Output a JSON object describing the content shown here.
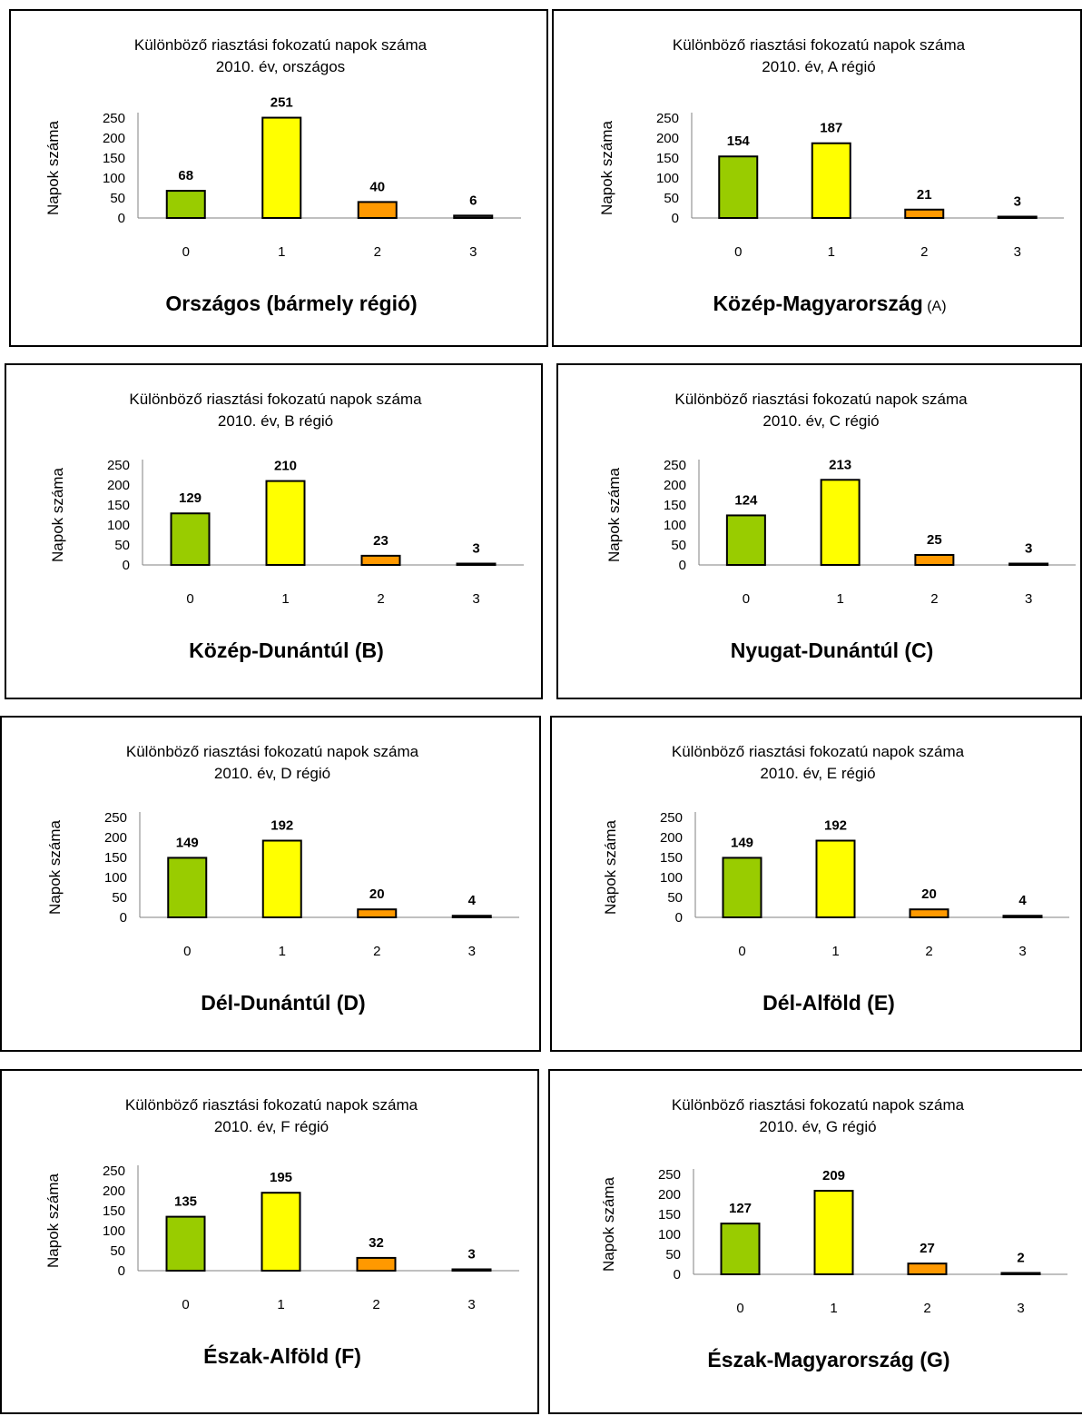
{
  "chart_data": [
    {
      "type": "bar",
      "title": "Különböző riasztási fokozatú napok száma",
      "subtitle": "2010. év, országos",
      "ylabel": "Napok száma",
      "caption": "Országos (bármely régió)",
      "caption_suffix": "",
      "categories": [
        "0",
        "1",
        "2",
        "3"
      ],
      "values": [
        68,
        251,
        40,
        6
      ],
      "colors": [
        "#99cc00",
        "#ffff00",
        "#ff9900",
        "#333333"
      ],
      "yticks": [
        0,
        50,
        100,
        150,
        200,
        250
      ],
      "ylim": [
        0,
        250
      ]
    },
    {
      "type": "bar",
      "title": "Különböző riasztási fokozatú napok száma",
      "subtitle": "2010. év, A régió",
      "ylabel": "Napok száma",
      "caption": "Közép-Magyarország",
      "caption_suffix": "(A)",
      "categories": [
        "0",
        "1",
        "2",
        "3"
      ],
      "values": [
        154,
        187,
        21,
        3
      ],
      "colors": [
        "#99cc00",
        "#ffff00",
        "#ff9900",
        "#333333"
      ],
      "yticks": [
        0,
        50,
        100,
        150,
        200,
        250
      ],
      "ylim": [
        0,
        250
      ]
    },
    {
      "type": "bar",
      "title": "Különböző riasztási fokozatú napok száma",
      "subtitle": "2010. év, B régió",
      "ylabel": "Napok száma",
      "caption": "Közép-Dunántúl (B)",
      "caption_suffix": "",
      "categories": [
        "0",
        "1",
        "2",
        "3"
      ],
      "values": [
        129,
        210,
        23,
        3
      ],
      "colors": [
        "#99cc00",
        "#ffff00",
        "#ff9900",
        "#333333"
      ],
      "yticks": [
        0,
        50,
        100,
        150,
        200,
        250
      ],
      "ylim": [
        0,
        250
      ]
    },
    {
      "type": "bar",
      "title": "Különböző riasztási fokozatú napok száma",
      "subtitle": "2010. év, C régió",
      "ylabel": "Napok száma",
      "caption": "Nyugat-Dunántúl (C)",
      "caption_suffix": "",
      "categories": [
        "0",
        "1",
        "2",
        "3"
      ],
      "values": [
        124,
        213,
        25,
        3
      ],
      "colors": [
        "#99cc00",
        "#ffff00",
        "#ff9900",
        "#333333"
      ],
      "yticks": [
        0,
        50,
        100,
        150,
        200,
        250
      ],
      "ylim": [
        0,
        250
      ]
    },
    {
      "type": "bar",
      "title": "Különböző riasztási fokozatú napok száma",
      "subtitle": "2010. év, D régió",
      "ylabel": "Napok száma",
      "caption": "Dél-Dunántúl (D)",
      "caption_suffix": "",
      "categories": [
        "0",
        "1",
        "2",
        "3"
      ],
      "values": [
        149,
        192,
        20,
        4
      ],
      "colors": [
        "#99cc00",
        "#ffff00",
        "#ff9900",
        "#333333"
      ],
      "yticks": [
        0,
        50,
        100,
        150,
        200,
        250
      ],
      "ylim": [
        0,
        250
      ]
    },
    {
      "type": "bar",
      "title": "Különböző riasztási fokozatú napok száma",
      "subtitle": "2010. év, E régió",
      "ylabel": "Napok száma",
      "caption": "Dél-Alföld (E)",
      "caption_suffix": "",
      "categories": [
        "0",
        "1",
        "2",
        "3"
      ],
      "values": [
        149,
        192,
        20,
        4
      ],
      "colors": [
        "#99cc00",
        "#ffff00",
        "#ff9900",
        "#333333"
      ],
      "yticks": [
        0,
        50,
        100,
        150,
        200,
        250
      ],
      "ylim": [
        0,
        250
      ]
    },
    {
      "type": "bar",
      "title": "Különböző riasztási fokozatú napok száma",
      "subtitle": "2010. év, F régió",
      "ylabel": "Napok száma",
      "caption": "Észak-Alföld (F)",
      "caption_suffix": "",
      "categories": [
        "0",
        "1",
        "2",
        "3"
      ],
      "values": [
        135,
        195,
        32,
        3
      ],
      "colors": [
        "#99cc00",
        "#ffff00",
        "#ff9900",
        "#333333"
      ],
      "yticks": [
        0,
        50,
        100,
        150,
        200,
        250
      ],
      "ylim": [
        0,
        250
      ]
    },
    {
      "type": "bar",
      "title": "Különböző riasztási fokozatú napok száma",
      "subtitle": "2010. év, G régió",
      "ylabel": "Napok száma",
      "caption": "Észak-Magyarország (G)",
      "caption_suffix": "",
      "categories": [
        "0",
        "1",
        "2",
        "3"
      ],
      "values": [
        127,
        209,
        27,
        2
      ],
      "colors": [
        "#99cc00",
        "#ffff00",
        "#ff9900",
        "#333333"
      ],
      "yticks": [
        0,
        50,
        100,
        150,
        200,
        250
      ],
      "ylim": [
        0,
        250
      ]
    }
  ]
}
